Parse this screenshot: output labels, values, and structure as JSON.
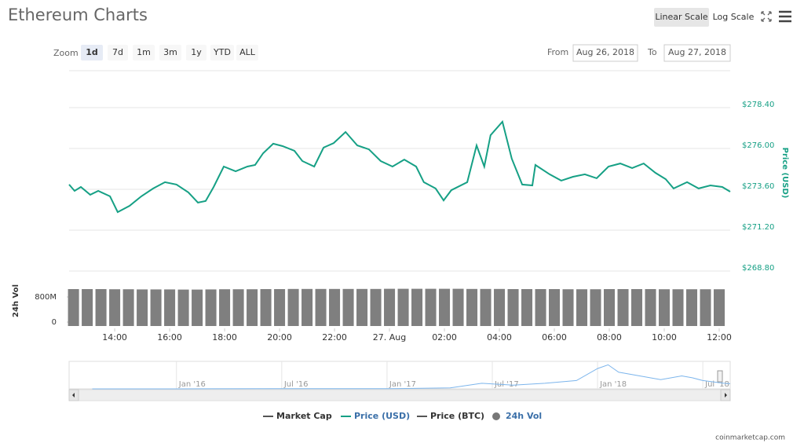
{
  "title": "Ethereum Charts",
  "scale_buttons": {
    "items": [
      "Linear Scale",
      "Log Scale"
    ],
    "selected": 0
  },
  "zoom": {
    "label": "Zoom",
    "items": [
      "1d",
      "7d",
      "1m",
      "3m",
      "1y",
      "YTD",
      "ALL"
    ],
    "selected": 0
  },
  "range": {
    "from_label": "From",
    "from": "Aug 26, 2018",
    "to_label": "To",
    "to": "Aug 27, 2018"
  },
  "credit": "coinmarketcap.com",
  "chart_data": [
    {
      "type": "line",
      "y_axis_label": "Price (USD)",
      "axis_color": "#16a085",
      "grid": true,
      "xlim": [
        12.34,
        36.4
      ],
      "xticks": [
        {
          "value": 14,
          "label": "14:00"
        },
        {
          "value": 16,
          "label": "16:00"
        },
        {
          "value": 18,
          "label": "18:00"
        },
        {
          "value": 20,
          "label": "20:00"
        },
        {
          "value": 22,
          "label": "22:00"
        },
        {
          "value": 24,
          "label": "27. Aug"
        },
        {
          "value": 26,
          "label": "02:00"
        },
        {
          "value": 28,
          "label": "04:00"
        },
        {
          "value": 30,
          "label": "06:00"
        },
        {
          "value": 32,
          "label": "08:00"
        },
        {
          "value": 34,
          "label": "10:00"
        },
        {
          "value": 36,
          "label": "12:00"
        }
      ],
      "ylim": [
        268.8,
        280.8
      ],
      "yticks": [
        {
          "value": 268.8,
          "label": "$268.80"
        },
        {
          "value": 271.2,
          "label": "$271.20"
        },
        {
          "value": 273.6,
          "label": "$273.60"
        },
        {
          "value": 276,
          "label": "$276.00"
        },
        {
          "value": 278.4,
          "label": "$278.40"
        }
      ],
      "series": [
        {
          "color": "#16a085",
          "x": [
            12.34,
            12.54,
            12.77,
            13.11,
            13.4,
            13.83,
            14.11,
            14.54,
            14.97,
            15.4,
            15.83,
            16.25,
            16.68,
            17.03,
            17.31,
            17.6,
            17.97,
            18.4,
            18.83,
            19.11,
            19.4,
            19.77,
            20.11,
            20.54,
            20.83,
            21.26,
            21.6,
            21.97,
            22.4,
            22.83,
            23.25,
            23.68,
            24.11,
            24.54,
            24.97,
            25.25,
            25.68,
            25.97,
            26.25,
            26.83,
            27.17,
            27.45,
            27.68,
            28.11,
            28.45,
            28.83,
            29.2,
            29.31,
            29.83,
            30.25,
            30.68,
            31.11,
            31.54,
            31.97,
            32.4,
            32.83,
            33.25,
            33.68,
            34.05,
            34.34,
            34.83,
            35.25,
            35.68,
            36.11,
            36.4
          ],
          "values": [
            273.88,
            273.51,
            273.74,
            273.28,
            273.51,
            273.19,
            272.26,
            272.63,
            273.19,
            273.65,
            274.02,
            273.88,
            273.42,
            272.82,
            272.91,
            273.74,
            274.94,
            274.66,
            274.94,
            275.03,
            275.72,
            276.28,
            276.14,
            275.86,
            275.26,
            274.94,
            276.05,
            276.32,
            276.97,
            276.18,
            275.95,
            275.26,
            274.94,
            275.35,
            274.94,
            274.02,
            273.65,
            272.95,
            273.55,
            274.02,
            276.18,
            274.94,
            276.78,
            277.57,
            275.4,
            273.88,
            273.83,
            275.03,
            274.48,
            274.11,
            274.34,
            274.48,
            274.25,
            274.94,
            275.12,
            274.85,
            275.12,
            274.57,
            274.2,
            273.65,
            274.02,
            273.65,
            273.83,
            273.74,
            273.46
          ]
        }
      ],
      "legend": [
        {
          "name": "Market Cap",
          "color": "#555555",
          "text_color": "#333333"
        },
        {
          "name": "Price (USD)",
          "color": "#16a085",
          "text_color": "#3a6fa8"
        },
        {
          "name": "Price (BTC)",
          "color": "#555555",
          "text_color": "#333333"
        },
        {
          "name": "24h Vol",
          "color": "#777777",
          "text_color": "#3a6fa8"
        }
      ]
    },
    {
      "type": "bar",
      "y_axis_label": "24h Vol",
      "xlim": [
        12.34,
        36.4
      ],
      "ylim": [
        0,
        1500000000
      ],
      "yticks": [
        0,
        {
          "value": 800000000,
          "label": "800M"
        }
      ],
      "series": [
        {
          "color": "#7f7f7f",
          "x": [
            12.5,
            13,
            13.5,
            14,
            14.5,
            15,
            15.5,
            16,
            16.5,
            17,
            17.5,
            18,
            18.5,
            19,
            19.5,
            20,
            20.5,
            21,
            21.5,
            22,
            22.5,
            23,
            23.5,
            24,
            24.5,
            25,
            25.5,
            26,
            26.5,
            27,
            27.5,
            28,
            28.5,
            29,
            29.5,
            30,
            30.5,
            31,
            31.5,
            32,
            32.5,
            33,
            33.5,
            34,
            34.5,
            35,
            35.5,
            36
          ],
          "values": [
            1050000000,
            1050000000,
            1050000000,
            1045000000,
            1045000000,
            1040000000,
            1040000000,
            1040000000,
            1035000000,
            1035000000,
            1040000000,
            1045000000,
            1045000000,
            1045000000,
            1050000000,
            1050000000,
            1055000000,
            1055000000,
            1055000000,
            1055000000,
            1055000000,
            1055000000,
            1055000000,
            1060000000,
            1060000000,
            1060000000,
            1060000000,
            1060000000,
            1060000000,
            1055000000,
            1055000000,
            1055000000,
            1050000000,
            1050000000,
            1050000000,
            1050000000,
            1045000000,
            1045000000,
            1045000000,
            1050000000,
            1050000000,
            1050000000,
            1050000000,
            1045000000,
            1045000000,
            1045000000,
            1045000000,
            1045000000
          ]
        }
      ]
    },
    {
      "type": "area",
      "xlim": [
        2015.49,
        2018.63
      ],
      "ylim": [
        0,
        1400
      ],
      "xticks": [
        {
          "value": 2016,
          "label": "Jan '16"
        },
        {
          "value": 2016.5,
          "label": "Jul '16"
        },
        {
          "value": 2017,
          "label": "Jan '17"
        },
        {
          "value": 2017.5,
          "label": "Jul '17"
        },
        {
          "value": 2018,
          "label": "Jan '18"
        },
        {
          "value": 2018.5,
          "label": "Jul '18"
        }
      ],
      "series": [
        {
          "color": "#7cb5ec",
          "x": [
            2015.6,
            2016,
            2016.5,
            2017,
            2017.3,
            2017.45,
            2017.6,
            2017.75,
            2017.9,
            2018,
            2018.05,
            2018.1,
            2018.2,
            2018.3,
            2018.4,
            2018.45,
            2018.5,
            2018.6,
            2018.63
          ],
          "values": [
            1,
            1,
            12,
            8,
            50,
            300,
            200,
            300,
            450,
            1100,
            1300,
            900,
            700,
            500,
            700,
            600,
            450,
            300,
            280
          ]
        }
      ]
    }
  ]
}
